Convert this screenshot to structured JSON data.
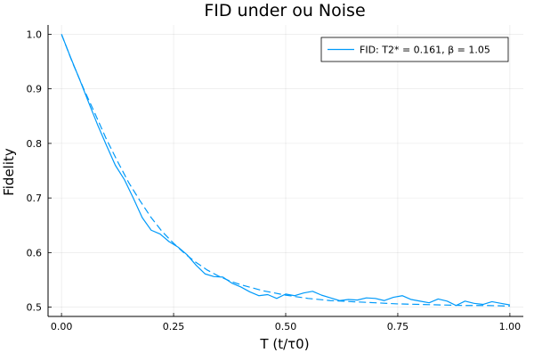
{
  "chart_data": {
    "type": "line",
    "title": "FID under ou Noise",
    "xlabel": "T (t/τ0)",
    "ylabel": "Fidelity",
    "xlim": [
      -0.03,
      1.03
    ],
    "ylim": [
      0.483,
      1.017
    ],
    "x_ticks": [
      0.0,
      0.25,
      0.5,
      0.75,
      1.0
    ],
    "x_tick_labels": [
      "0.00",
      "0.25",
      "0.50",
      "0.75",
      "1.00"
    ],
    "y_ticks": [
      0.5,
      0.6,
      0.7,
      0.8,
      0.9,
      1.0
    ],
    "y_tick_labels": [
      "0.5",
      "0.6",
      "0.7",
      "0.8",
      "0.9",
      "1.0"
    ],
    "grid": true,
    "legend_position": "top-right",
    "legend": [
      "FID: T2* = 0.161, β = 1.05"
    ],
    "series": [
      {
        "name": "FID: T2* = 0.161, β = 1.05",
        "style": "solid",
        "color": "#009AFA",
        "x": [
          0.0,
          0.02,
          0.04,
          0.06,
          0.08,
          0.1,
          0.12,
          0.14,
          0.16,
          0.18,
          0.2,
          0.22,
          0.24,
          0.26,
          0.28,
          0.3,
          0.32,
          0.34,
          0.36,
          0.38,
          0.4,
          0.42,
          0.44,
          0.46,
          0.48,
          0.5,
          0.52,
          0.54,
          0.56,
          0.58,
          0.6,
          0.62,
          0.64,
          0.66,
          0.68,
          0.7,
          0.72,
          0.74,
          0.76,
          0.78,
          0.8,
          0.82,
          0.84,
          0.86,
          0.88,
          0.9,
          0.92,
          0.94,
          0.96,
          0.98,
          1.0
        ],
        "y": [
          1.0,
          0.958,
          0.918,
          0.876,
          0.835,
          0.797,
          0.76,
          0.734,
          0.7,
          0.664,
          0.641,
          0.634,
          0.62,
          0.61,
          0.596,
          0.577,
          0.561,
          0.556,
          0.555,
          0.544,
          0.537,
          0.528,
          0.521,
          0.523,
          0.516,
          0.524,
          0.521,
          0.526,
          0.529,
          0.522,
          0.517,
          0.512,
          0.514,
          0.513,
          0.517,
          0.516,
          0.512,
          0.518,
          0.521,
          0.514,
          0.511,
          0.508,
          0.515,
          0.511,
          0.503,
          0.511,
          0.507,
          0.505,
          0.51,
          0.507,
          0.504
        ]
      },
      {
        "name": "",
        "style": "dashed",
        "color": "#009AFA",
        "x": [
          0.0,
          0.025,
          0.05,
          0.075,
          0.1,
          0.125,
          0.15,
          0.175,
          0.2,
          0.225,
          0.25,
          0.275,
          0.3,
          0.325,
          0.35,
          0.375,
          0.4,
          0.45,
          0.5,
          0.55,
          0.6,
          0.65,
          0.7,
          0.75,
          0.8,
          0.85,
          0.9,
          0.95,
          1.0
        ],
        "y": [
          1.0,
          0.947,
          0.899,
          0.854,
          0.808,
          0.767,
          0.728,
          0.695,
          0.664,
          0.638,
          0.617,
          0.598,
          0.582,
          0.568,
          0.557,
          0.548,
          0.541,
          0.53,
          0.522,
          0.516,
          0.512,
          0.51,
          0.508,
          0.506,
          0.505,
          0.504,
          0.503,
          0.503,
          0.502
        ]
      }
    ]
  }
}
